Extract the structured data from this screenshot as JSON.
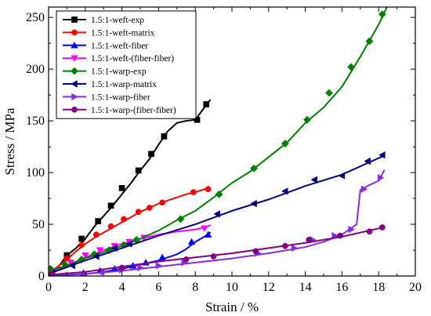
{
  "chart_data": {
    "type": "line",
    "xlabel": "Strain / %",
    "ylabel": "Stress / MPa",
    "xlim": [
      0,
      20
    ],
    "ylim": [
      0,
      260
    ],
    "x_ticks": [
      0,
      2,
      4,
      6,
      8,
      10,
      12,
      14,
      16,
      18,
      20
    ],
    "y_ticks": [
      0,
      50,
      100,
      150,
      200,
      250
    ],
    "grid": false,
    "legend_position": "top-left",
    "series": [
      {
        "name": "1.5:1-weft-exp",
        "color": "#000000",
        "marker": "square",
        "points": [
          [
            0,
            2
          ],
          [
            0.5,
            8
          ],
          [
            1,
            20
          ],
          [
            1.5,
            27
          ],
          [
            2,
            36
          ],
          [
            2.5,
            48
          ],
          [
            3,
            58
          ],
          [
            3.5,
            68
          ],
          [
            4,
            79
          ],
          [
            4.5,
            90
          ],
          [
            5,
            102
          ],
          [
            5.5,
            113
          ],
          [
            6,
            127
          ],
          [
            6.5,
            140
          ],
          [
            7,
            148
          ],
          [
            7.5,
            150
          ],
          [
            8,
            151
          ],
          [
            8.5,
            163
          ],
          [
            8.8,
            170
          ]
        ],
        "marker_points": [
          [
            1,
            20
          ],
          [
            1.8,
            36
          ],
          [
            2.7,
            53
          ],
          [
            3.4,
            68
          ],
          [
            4,
            85
          ],
          [
            4.9,
            102
          ],
          [
            5.6,
            118
          ],
          [
            6.3,
            135
          ],
          [
            8.1,
            151
          ],
          [
            8.6,
            166
          ]
        ]
      },
      {
        "name": "1.5:1-weft-matrix",
        "color": "#ff0000",
        "marker": "circle",
        "points": [
          [
            0,
            3
          ],
          [
            0.5,
            9
          ],
          [
            1,
            16
          ],
          [
            1.5,
            24
          ],
          [
            2,
            31
          ],
          [
            2.5,
            37
          ],
          [
            3,
            42
          ],
          [
            3.5,
            47
          ],
          [
            4,
            52
          ],
          [
            4.5,
            57
          ],
          [
            5,
            62
          ],
          [
            5.5,
            66
          ],
          [
            6,
            70
          ],
          [
            6.5,
            73
          ],
          [
            7,
            76
          ],
          [
            7.5,
            79
          ],
          [
            8,
            81
          ],
          [
            8.5,
            84
          ],
          [
            8.8,
            84
          ]
        ],
        "marker_points": [
          [
            0.2,
            5
          ],
          [
            1,
            17
          ],
          [
            1.8,
            30
          ],
          [
            2.6,
            40
          ],
          [
            3.4,
            48
          ],
          [
            4.1,
            55
          ],
          [
            4.9,
            62
          ],
          [
            5.5,
            66
          ],
          [
            6.2,
            71
          ],
          [
            7.9,
            81
          ],
          [
            8.7,
            84
          ]
        ]
      },
      {
        "name": "1.5:1-weft-fiber",
        "color": "#0000ff",
        "marker": "triangle-up",
        "points": [
          [
            0,
            0
          ],
          [
            1,
            1
          ],
          [
            2,
            2
          ],
          [
            3,
            4
          ],
          [
            4,
            7
          ],
          [
            5,
            11
          ],
          [
            6,
            15
          ],
          [
            7,
            21
          ],
          [
            7.5,
            26
          ],
          [
            8,
            33
          ],
          [
            8.5,
            38
          ],
          [
            8.8,
            42
          ]
        ],
        "marker_points": [
          [
            1,
            1
          ],
          [
            1.9,
            3
          ],
          [
            2.8,
            5
          ],
          [
            3.6,
            7
          ],
          [
            4.6,
            10
          ],
          [
            5.3,
            13
          ],
          [
            6.2,
            18
          ],
          [
            7.8,
            33
          ],
          [
            8.7,
            40
          ]
        ]
      },
      {
        "name": "1.5:1-weft-(fiber-fiber)",
        "color": "#ff00ff",
        "marker": "triangle-down",
        "points": [
          [
            0,
            3
          ],
          [
            0.5,
            6
          ],
          [
            1,
            10
          ],
          [
            2,
            18
          ],
          [
            3,
            25
          ],
          [
            4,
            31
          ],
          [
            5,
            36
          ],
          [
            6,
            40
          ],
          [
            7,
            43
          ],
          [
            7.5,
            44
          ],
          [
            8,
            45
          ],
          [
            8.5,
            47
          ],
          [
            8.8,
            49
          ]
        ],
        "marker_points": [
          [
            0.3,
            5
          ],
          [
            1.2,
            13
          ],
          [
            2,
            20
          ],
          [
            2.8,
            25
          ],
          [
            3.6,
            29
          ],
          [
            4.4,
            33
          ],
          [
            5.2,
            37
          ],
          [
            8.5,
            46
          ]
        ]
      },
      {
        "name": "1.5:1-warp-exp",
        "color": "#008000",
        "marker": "diamond",
        "points": [
          [
            0,
            5
          ],
          [
            1,
            10
          ],
          [
            2,
            17
          ],
          [
            3,
            23
          ],
          [
            4,
            29
          ],
          [
            5,
            36
          ],
          [
            6,
            44
          ],
          [
            7,
            54
          ],
          [
            8,
            63
          ],
          [
            9,
            76
          ],
          [
            10,
            90
          ],
          [
            11,
            101
          ],
          [
            12,
            115
          ],
          [
            13,
            129
          ],
          [
            14,
            148
          ],
          [
            15,
            163
          ],
          [
            16,
            183
          ],
          [
            17,
            212
          ],
          [
            18,
            243
          ],
          [
            18.5,
            262
          ]
        ],
        "marker_points": [
          [
            0.1,
            7
          ],
          [
            0.9,
            11
          ],
          [
            1.8,
            16
          ],
          [
            2.5,
            21
          ],
          [
            3.3,
            25
          ],
          [
            4.1,
            30
          ],
          [
            4.8,
            35
          ],
          [
            7.2,
            55
          ],
          [
            9.3,
            79
          ],
          [
            11.2,
            104
          ],
          [
            12.9,
            128
          ],
          [
            14.1,
            151
          ],
          [
            15.3,
            177
          ],
          [
            16.5,
            202
          ],
          [
            17.5,
            227
          ],
          [
            18.2,
            253
          ]
        ]
      },
      {
        "name": "1.5:1-warp-matrix",
        "color": "#00007f",
        "marker": "triangle-left",
        "points": [
          [
            0,
            2
          ],
          [
            2,
            15
          ],
          [
            4,
            27
          ],
          [
            6,
            39
          ],
          [
            8,
            50
          ],
          [
            10,
            63
          ],
          [
            12,
            74
          ],
          [
            14,
            87
          ],
          [
            16,
            98
          ],
          [
            18,
            114
          ],
          [
            18.3,
            116
          ]
        ],
        "marker_points": [
          [
            0.2,
            3
          ],
          [
            1.3,
            10
          ],
          [
            2.6,
            19
          ],
          [
            3.6,
            27
          ],
          [
            4.4,
            31
          ],
          [
            9.2,
            60
          ],
          [
            11.2,
            70
          ],
          [
            12.9,
            82
          ],
          [
            14.5,
            93
          ],
          [
            16,
            97
          ],
          [
            17.4,
            111
          ],
          [
            18.2,
            117
          ]
        ]
      },
      {
        "name": "1.5:1-warp-fiber",
        "color": "#8a2be2",
        "marker": "triangle-right",
        "points": [
          [
            0,
            0
          ],
          [
            2,
            2
          ],
          [
            4,
            5
          ],
          [
            6,
            9
          ],
          [
            8,
            13
          ],
          [
            10,
            17
          ],
          [
            12,
            22
          ],
          [
            14,
            28
          ],
          [
            15,
            33
          ],
          [
            16,
            40
          ],
          [
            16.8,
            50
          ],
          [
            17,
            83
          ],
          [
            17.5,
            88
          ],
          [
            18,
            92
          ],
          [
            18.3,
            102
          ]
        ],
        "marker_points": [
          [
            1,
            0
          ],
          [
            2,
            2
          ],
          [
            3,
            4
          ],
          [
            4,
            6
          ],
          [
            5,
            8
          ],
          [
            6,
            10
          ],
          [
            7.4,
            13
          ],
          [
            11.4,
            22
          ],
          [
            13.4,
            27
          ],
          [
            14.4,
            35
          ],
          [
            15.6,
            39
          ],
          [
            16.5,
            45
          ],
          [
            17.2,
            84
          ],
          [
            18.1,
            95
          ]
        ]
      },
      {
        "name": "1.5:1-warp-(fiber-fiber)",
        "color": "#800080",
        "marker": "circle",
        "points": [
          [
            0,
            1
          ],
          [
            2,
            4
          ],
          [
            4,
            9
          ],
          [
            6,
            14
          ],
          [
            8,
            18
          ],
          [
            10,
            22
          ],
          [
            12,
            27
          ],
          [
            14,
            32
          ],
          [
            16,
            38
          ],
          [
            18,
            46
          ],
          [
            18.3,
            48
          ]
        ],
        "marker_points": [
          [
            0.2,
            2
          ],
          [
            4,
            8
          ],
          [
            7.5,
            16
          ],
          [
            9,
            19
          ],
          [
            11.3,
            24
          ],
          [
            12.9,
            29
          ],
          [
            14.2,
            35
          ],
          [
            15.9,
            39
          ],
          [
            17.5,
            43
          ],
          [
            18.2,
            47
          ]
        ]
      }
    ]
  }
}
